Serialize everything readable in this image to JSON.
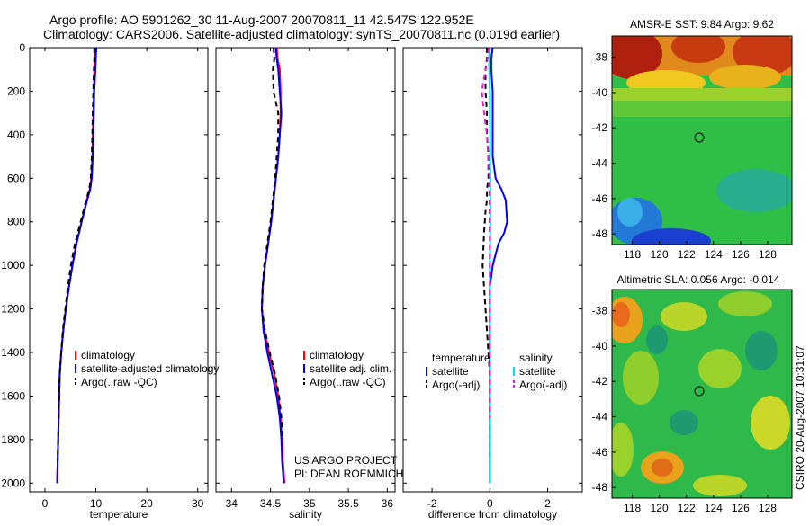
{
  "header": {
    "line1": "Argo profile: AO 5901262_30 11-Aug-2007 20070811_11 42.547S 122.952E",
    "line2": "Climatology: CARS2006. Satellite-adjusted climatology: synTS_20070811.nc (0.019d earlier)"
  },
  "credits": {
    "project": "US ARGO PROJECT",
    "pi": "PI: DEAN ROEMMICH",
    "stamp": "CSIRO 20-Aug-2007 10:31:07"
  },
  "colors": {
    "climatology": "#ff0000",
    "satellite": "#0000ff",
    "argo": "#000000",
    "sal_satellite": "#00e5e5",
    "sal_argo": "#e01bd2"
  },
  "chart_data": [
    {
      "type": "line",
      "id": "temperature",
      "xlabel": "temperature",
      "ylabel": "",
      "xlim": [
        -3,
        32
      ],
      "ylim": [
        2040,
        0
      ],
      "x_ticks": [
        0,
        10,
        20,
        30
      ],
      "y_ticks": [
        0,
        200,
        400,
        600,
        800,
        1000,
        1200,
        1400,
        1600,
        1800,
        2000
      ],
      "legend": [
        "climatology",
        "satellite-adjusted climatology",
        "Argo(..raw -QC)"
      ],
      "legend_position": "lower-right",
      "series": [
        {
          "name": "climatology",
          "role": "climatology",
          "style": "solid",
          "x": [
            9.8,
            9.8,
            9.7,
            9.6,
            9.5,
            9.4,
            9.3,
            9.1,
            8.8,
            8.2,
            7.2,
            6.2,
            5.4,
            4.7,
            4.1,
            3.6,
            3.2,
            2.9,
            2.8,
            2.7,
            2.6,
            2.5,
            2.4
          ],
          "y": [
            0,
            50,
            100,
            200,
            300,
            400,
            500,
            600,
            650,
            700,
            800,
            900,
            1000,
            1100,
            1200,
            1300,
            1400,
            1500,
            1600,
            1700,
            1800,
            1900,
            2000
          ]
        },
        {
          "name": "satellite-adjusted climatology",
          "role": "satellite",
          "style": "solid",
          "x": [
            10.1,
            10.0,
            9.9,
            9.7,
            9.6,
            9.5,
            9.4,
            9.2,
            8.9,
            8.3,
            7.2,
            6.2,
            5.4,
            4.7,
            4.1,
            3.6,
            3.2,
            2.9,
            2.8,
            2.7,
            2.6,
            2.5,
            2.4
          ],
          "y": [
            0,
            50,
            100,
            200,
            300,
            400,
            500,
            600,
            650,
            700,
            800,
            900,
            1000,
            1100,
            1200,
            1300,
            1400,
            1500,
            1600,
            1700,
            1800,
            1900,
            2000
          ]
        },
        {
          "name": "Argo(..raw -QC)",
          "role": "argo",
          "style": "dashed",
          "x": [
            9.7,
            9.7,
            9.6,
            9.5,
            9.4,
            9.3,
            9.2,
            9.0,
            8.7,
            8.1,
            7.0,
            5.9,
            5.1,
            4.5,
            4.0,
            3.5,
            3.2,
            2.9,
            2.8,
            2.7,
            2.6,
            2.5
          ],
          "y": [
            0,
            50,
            100,
            200,
            300,
            400,
            500,
            600,
            650,
            700,
            800,
            900,
            1000,
            1100,
            1200,
            1300,
            1400,
            1500,
            1600,
            1700,
            1800,
            1900
          ]
        }
      ]
    },
    {
      "type": "line",
      "id": "salinity",
      "xlabel": "salinity",
      "ylabel": "",
      "xlim": [
        33.8,
        36.1
      ],
      "ylim": [
        2040,
        0
      ],
      "x_ticks": [
        34,
        34.5,
        35,
        35.5,
        36
      ],
      "x_tick_labels": [
        "34",
        "34.5",
        "35",
        "35.5",
        "36"
      ],
      "legend": [
        "climatology",
        "satellite adj. clim.",
        "Argo(..raw -QC)"
      ],
      "legend_position": "lower-right",
      "series": [
        {
          "name": "climatology",
          "role": "climatology",
          "style": "solid",
          "x": [
            34.58,
            34.59,
            34.62,
            34.63,
            34.63,
            34.62,
            34.6,
            34.57,
            34.54,
            34.51,
            34.47,
            34.43,
            34.4,
            34.39,
            34.42,
            34.48,
            34.55,
            34.6,
            34.63,
            34.65,
            34.66,
            34.67,
            34.68
          ],
          "y": [
            0,
            50,
            100,
            200,
            300,
            400,
            500,
            600,
            700,
            800,
            900,
            1000,
            1100,
            1200,
            1300,
            1400,
            1500,
            1600,
            1700,
            1800,
            1900,
            1950,
            2000
          ]
        },
        {
          "name": "satellite adj. clim.",
          "role": "satellite",
          "style": "solid",
          "x": [
            34.57,
            34.58,
            34.6,
            34.62,
            34.64,
            34.62,
            34.6,
            34.57,
            34.54,
            34.51,
            34.47,
            34.43,
            34.4,
            34.39,
            34.41,
            34.46,
            34.52,
            34.58,
            34.62,
            34.64,
            34.65,
            34.66,
            34.67
          ],
          "y": [
            0,
            50,
            100,
            200,
            300,
            400,
            500,
            600,
            700,
            800,
            900,
            1000,
            1100,
            1200,
            1300,
            1400,
            1500,
            1600,
            1700,
            1800,
            1900,
            1950,
            2000
          ]
        },
        {
          "name": "Argo(..raw -QC)",
          "role": "argo",
          "style": "dashed",
          "x": [
            34.54,
            34.55,
            34.53,
            34.54,
            34.6,
            34.6,
            34.58,
            34.56,
            34.53,
            34.5,
            34.46,
            34.42,
            34.4,
            34.39,
            34.43,
            34.49,
            34.56,
            34.61,
            34.64,
            34.66
          ],
          "y": [
            0,
            50,
            100,
            200,
            300,
            400,
            500,
            600,
            700,
            800,
            900,
            1000,
            1100,
            1200,
            1300,
            1400,
            1500,
            1600,
            1700,
            1800
          ]
        }
      ]
    },
    {
      "type": "line",
      "id": "difference",
      "xlabel": "difference from climatology",
      "ylabel": "",
      "xlim": [
        -3,
        3.2
      ],
      "ylim": [
        2040,
        0
      ],
      "x_ticks": [
        -2,
        0,
        2
      ],
      "legend_groups": [
        {
          "heading": "temperature",
          "entries": [
            "satellite",
            "Argo(-adj)"
          ]
        },
        {
          "heading": "salinity",
          "entries": [
            "satellite",
            "Argo(-adj)"
          ]
        }
      ],
      "legend_position": "lower-right",
      "series": [
        {
          "name": "satellite",
          "group": "temperature",
          "role": "satellite",
          "style": "solid",
          "x": [
            0.1,
            0.05,
            0.05,
            0.1,
            0.1,
            0.1,
            0.1,
            0.2,
            0.4,
            0.55,
            0.6,
            0.5,
            0.3,
            0.1,
            0.0,
            0.0,
            0.0,
            0.0,
            0.0,
            0.0,
            0.0,
            0.0,
            0.0
          ],
          "y": [
            0,
            50,
            100,
            200,
            300,
            400,
            500,
            600,
            650,
            700,
            800,
            850,
            900,
            1000,
            1100,
            1200,
            1300,
            1400,
            1500,
            1600,
            1700,
            1800,
            2000
          ]
        },
        {
          "name": "Argo(-adj)",
          "group": "temperature",
          "role": "argo",
          "style": "dashed",
          "x": [
            -0.1,
            -0.1,
            -0.15,
            -0.15,
            -0.1,
            -0.1,
            -0.05,
            -0.05,
            -0.1,
            -0.1,
            -0.15,
            -0.2,
            -0.25,
            -0.2,
            -0.15,
            -0.1,
            -0.05,
            0.0,
            0.0,
            0.0,
            0.0
          ],
          "y": [
            0,
            50,
            100,
            200,
            300,
            400,
            500,
            600,
            650,
            700,
            750,
            850,
            1000,
            1100,
            1200,
            1300,
            1400,
            1500,
            1600,
            1700,
            1900
          ]
        },
        {
          "name": "satellite",
          "group": "salinity",
          "role": "sal_satellite",
          "style": "solid",
          "x": [
            -0.03,
            -0.02,
            -0.02,
            0.0,
            0.0,
            0.01,
            0.01,
            0.02,
            0.02,
            0.02,
            0.01,
            0.0,
            0.0,
            0.0,
            0.0,
            0.0,
            0.0,
            0.0,
            0.0,
            0.0,
            0.0
          ],
          "y": [
            0,
            50,
            100,
            200,
            300,
            400,
            500,
            600,
            700,
            800,
            900,
            1000,
            1100,
            1200,
            1300,
            1400,
            1500,
            1600,
            1700,
            1800,
            2000
          ]
        },
        {
          "name": "Argo(-adj)",
          "group": "salinity",
          "role": "sal_argo",
          "style": "dashed",
          "x": [
            -0.04,
            -0.08,
            -0.15,
            -0.28,
            -0.2,
            -0.1,
            -0.05,
            -0.02,
            -0.01,
            -0.01,
            0.0,
            0.0,
            0.0,
            0.0,
            0.0,
            0.0,
            0.0,
            0.0
          ],
          "y": [
            0,
            50,
            100,
            200,
            300,
            400,
            500,
            600,
            700,
            800,
            900,
            1000,
            1100,
            1200,
            1300,
            1400,
            1500,
            1700
          ]
        }
      ]
    },
    {
      "type": "heatmap",
      "id": "sst_map",
      "title": "AMSR-E SST: 9.84  Argo: 9.62",
      "xlim": [
        116.5,
        129.8
      ],
      "ylim": [
        -48.6,
        -36.8
      ],
      "x_ticks": [
        118,
        120,
        122,
        124,
        126,
        128
      ],
      "y_ticks": [
        -38,
        -40,
        -42,
        -44,
        -46,
        -48
      ],
      "marker": {
        "lon": 122.952,
        "lat": -42.547
      },
      "description_colors": {
        "north": "red/orange",
        "middle": "green",
        "southwest": "blue"
      }
    },
    {
      "type": "heatmap",
      "id": "sla_map",
      "title": "Altimetric SLA: 0.056  Argo: -0.014",
      "xlim": [
        116.5,
        129.8
      ],
      "ylim": [
        -48.6,
        -36.8
      ],
      "x_ticks": [
        118,
        120,
        122,
        124,
        126,
        128
      ],
      "y_ticks": [
        -38,
        -40,
        -42,
        -44,
        -46,
        -48
      ],
      "marker": {
        "lon": 122.952,
        "lat": -42.547
      }
    }
  ]
}
